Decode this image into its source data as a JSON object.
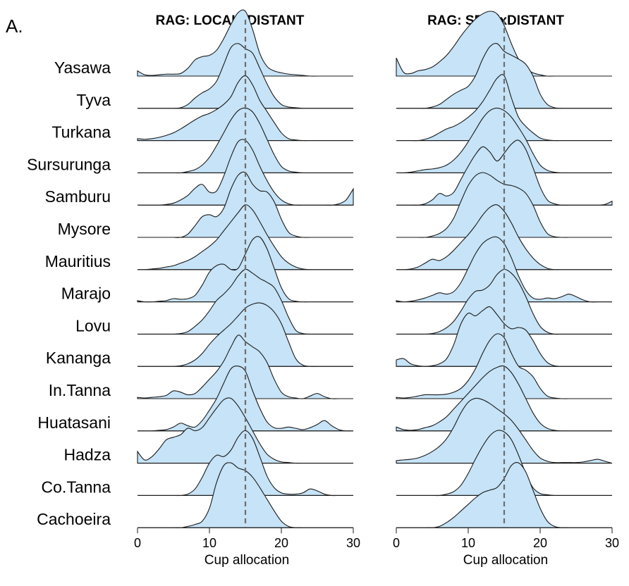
{
  "panel_label": "A.",
  "chart_data": [
    {
      "type": "area",
      "title": "RAG: LOCALxDISTANT",
      "xlabel": "Cup allocation",
      "xlim": [
        0,
        30
      ],
      "xticks": [
        0,
        10,
        20,
        30
      ],
      "reference_line": 15,
      "grid": false,
      "categories": [
        "Yasawa",
        "Tyva",
        "Turkana",
        "Sursurunga",
        "Samburu",
        "Mysore",
        "Mauritius",
        "Marajo",
        "Lovu",
        "Kananga",
        "In.Tanna",
        "Huatasani",
        "Hadza",
        "Co.Tanna",
        "Cachoeira"
      ],
      "x": [
        0,
        1,
        2,
        3,
        4,
        5,
        6,
        7,
        8,
        9,
        10,
        11,
        12,
        13,
        14,
        15,
        16,
        17,
        18,
        19,
        20,
        21,
        22,
        23,
        24,
        25,
        26,
        27,
        28,
        29,
        30
      ],
      "series": [
        {
          "values": [
            0.08,
            0.02,
            0.01,
            0.02,
            0.03,
            0.03,
            0.04,
            0.12,
            0.25,
            0.3,
            0.32,
            0.4,
            0.58,
            0.8,
            0.98,
            1.0,
            0.72,
            0.35,
            0.15,
            0.08,
            0.05,
            0.03,
            0.02,
            0.01,
            0,
            0,
            0,
            0,
            0,
            0,
            0
          ]
        },
        {
          "values": [
            0,
            0,
            0,
            0,
            0,
            0,
            0.01,
            0.06,
            0.16,
            0.24,
            0.3,
            0.42,
            0.68,
            0.94,
            1.0,
            0.92,
            0.85,
            0.62,
            0.38,
            0.18,
            0.06,
            0.02,
            0.01,
            0,
            0,
            0,
            0,
            0,
            0,
            0,
            0
          ]
        },
        {
          "values": [
            0.03,
            0.02,
            0.03,
            0.05,
            0.08,
            0.12,
            0.18,
            0.25,
            0.32,
            0.38,
            0.42,
            0.48,
            0.56,
            0.68,
            0.9,
            1.0,
            0.86,
            0.62,
            0.45,
            0.28,
            0.12,
            0.03,
            0.01,
            0,
            0,
            0,
            0,
            0,
            0,
            0,
            0
          ]
        },
        {
          "values": [
            0,
            0,
            0,
            0,
            0,
            0,
            0,
            0.02,
            0.05,
            0.12,
            0.24,
            0.42,
            0.62,
            0.82,
            0.96,
            1.0,
            0.94,
            0.76,
            0.52,
            0.28,
            0.1,
            0.03,
            0.01,
            0,
            0,
            0,
            0,
            0,
            0,
            0,
            0
          ]
        },
        {
          "values": [
            0,
            0,
            0,
            0,
            0.01,
            0.03,
            0.08,
            0.15,
            0.26,
            0.32,
            0.2,
            0.22,
            0.45,
            0.75,
            0.98,
            1.0,
            0.85,
            0.6,
            0.38,
            0.2,
            0.08,
            0.02,
            0,
            0,
            0,
            0,
            0,
            0,
            0.02,
            0.08,
            0.25
          ]
        },
        {
          "values": [
            0,
            0,
            0,
            0,
            0,
            0,
            0,
            0.05,
            0.18,
            0.32,
            0.35,
            0.32,
            0.45,
            0.75,
            0.96,
            1.0,
            0.82,
            0.72,
            0.7,
            0.55,
            0.28,
            0.08,
            0.02,
            0,
            0,
            0,
            0,
            0,
            0,
            0,
            0
          ]
        },
        {
          "values": [
            0,
            0,
            0.01,
            0.02,
            0.04,
            0.06,
            0.1,
            0.14,
            0.2,
            0.28,
            0.36,
            0.46,
            0.6,
            0.74,
            0.88,
            1.0,
            0.92,
            0.74,
            0.54,
            0.36,
            0.2,
            0.1,
            0.04,
            0.01,
            0,
            0,
            0,
            0,
            0,
            0,
            0
          ]
        },
        {
          "values": [
            0.02,
            0,
            0,
            0.01,
            0.02,
            0.05,
            0.04,
            0.05,
            0.1,
            0.26,
            0.46,
            0.56,
            0.58,
            0.5,
            0.52,
            0.74,
            0.96,
            1.0,
            0.82,
            0.52,
            0.22,
            0.05,
            0.01,
            0,
            0,
            0,
            0,
            0,
            0,
            0,
            0
          ]
        },
        {
          "values": [
            0,
            0,
            0,
            0,
            0,
            0,
            0.01,
            0.04,
            0.12,
            0.22,
            0.36,
            0.52,
            0.62,
            0.74,
            0.9,
            1.0,
            0.94,
            0.86,
            0.8,
            0.72,
            0.52,
            0.26,
            0.06,
            0.01,
            0,
            0,
            0,
            0,
            0,
            0,
            0
          ]
        },
        {
          "values": [
            0,
            0,
            0,
            0,
            0,
            0,
            0.01,
            0.04,
            0.1,
            0.2,
            0.34,
            0.46,
            0.56,
            0.66,
            0.78,
            0.9,
            0.96,
            0.98,
            0.94,
            0.84,
            0.66,
            0.38,
            0.12,
            0.02,
            0,
            0,
            0,
            0,
            0,
            0,
            0
          ]
        },
        {
          "values": [
            0.02,
            0.01,
            0.02,
            0.03,
            0.05,
            0.12,
            0.1,
            0.06,
            0.08,
            0.18,
            0.3,
            0.42,
            0.58,
            0.8,
            0.98,
            0.88,
            0.8,
            0.72,
            0.56,
            0.3,
            0.1,
            0.03,
            0.01,
            0,
            0.04,
            0.08,
            0.03,
            0,
            0,
            0,
            0
          ]
        },
        {
          "values": [
            0,
            0,
            0,
            0.01,
            0.02,
            0.06,
            0.12,
            0.08,
            0.06,
            0.16,
            0.32,
            0.5,
            0.74,
            0.96,
            1.0,
            0.92,
            0.62,
            0.35,
            0.14,
            0.05,
            0.04,
            0.06,
            0.04,
            0.02,
            0.05,
            0.1,
            0.16,
            0.08,
            0.02,
            0,
            0
          ]
        },
        {
          "values": [
            0.18,
            0.05,
            0.1,
            0.22,
            0.36,
            0.4,
            0.44,
            0.54,
            0.5,
            0.55,
            0.7,
            0.85,
            0.98,
            1.0,
            0.88,
            0.7,
            0.5,
            0.3,
            0.14,
            0.06,
            0.02,
            0.01,
            0,
            0,
            0,
            0,
            0,
            0,
            0,
            0,
            0
          ]
        },
        {
          "values": [
            0,
            0,
            0,
            0,
            0,
            0,
            0,
            0.02,
            0.1,
            0.28,
            0.5,
            0.62,
            0.6,
            0.7,
            0.9,
            1.0,
            0.88,
            0.6,
            0.3,
            0.12,
            0.04,
            0.02,
            0.02,
            0.04,
            0.1,
            0.07,
            0.02,
            0,
            0,
            0,
            0
          ]
        },
        {
          "values": [
            0,
            0,
            0,
            0,
            0,
            0,
            0,
            0.02,
            0.05,
            0.1,
            0.3,
            0.7,
            0.96,
            1.0,
            0.92,
            0.88,
            0.78,
            0.62,
            0.44,
            0.26,
            0.1,
            0.02,
            0,
            0,
            0,
            0,
            0,
            0,
            0,
            0,
            0
          ]
        }
      ]
    },
    {
      "type": "area",
      "title": "RAG: SELFxDISTANT",
      "xlabel": "Cup allocation",
      "xlim": [
        0,
        30
      ],
      "xticks": [
        0,
        10,
        20,
        30
      ],
      "reference_line": 15,
      "grid": false,
      "categories": [
        "Yasawa",
        "Tyva",
        "Turkana",
        "Sursurunga",
        "Samburu",
        "Mysore",
        "Mauritius",
        "Marajo",
        "Lovu",
        "Kananga",
        "In.Tanna",
        "Huatasani",
        "Hadza",
        "Co.Tanna",
        "Cachoeira"
      ],
      "x": [
        0,
        1,
        2,
        3,
        4,
        5,
        6,
        7,
        8,
        9,
        10,
        11,
        12,
        13,
        14,
        15,
        16,
        17,
        18,
        19,
        20,
        21,
        22,
        23,
        24,
        25,
        26,
        27,
        28,
        29,
        30
      ],
      "series": [
        {
          "values": [
            0.28,
            0.06,
            0.04,
            0.08,
            0.1,
            0.14,
            0.22,
            0.32,
            0.46,
            0.62,
            0.76,
            0.88,
            0.96,
            1.0,
            0.96,
            0.78,
            0.5,
            0.26,
            0.12,
            0.05,
            0.02,
            0,
            0,
            0,
            0,
            0,
            0,
            0,
            0,
            0,
            0
          ]
        },
        {
          "values": [
            0,
            0,
            0,
            0,
            0,
            0.02,
            0.06,
            0.14,
            0.22,
            0.28,
            0.34,
            0.5,
            0.76,
            0.95,
            1.0,
            0.88,
            0.82,
            0.76,
            0.68,
            0.5,
            0.22,
            0.06,
            0.01,
            0,
            0,
            0,
            0,
            0,
            0,
            0,
            0
          ]
        },
        {
          "values": [
            0,
            0,
            0,
            0,
            0.02,
            0.06,
            0.12,
            0.18,
            0.22,
            0.28,
            0.36,
            0.46,
            0.6,
            0.78,
            0.96,
            1.0,
            0.66,
            0.36,
            0.22,
            0.12,
            0.04,
            0.01,
            0,
            0,
            0,
            0,
            0,
            0,
            0,
            0,
            0
          ]
        },
        {
          "values": [
            0,
            0,
            0.01,
            0.03,
            0.05,
            0.06,
            0.08,
            0.12,
            0.2,
            0.32,
            0.48,
            0.66,
            0.84,
            0.96,
            1.0,
            0.96,
            0.86,
            0.7,
            0.52,
            0.3,
            0.12,
            0.04,
            0.01,
            0,
            0,
            0,
            0,
            0,
            0,
            0,
            0
          ]
        },
        {
          "values": [
            0,
            0,
            0,
            0,
            0.02,
            0.08,
            0.18,
            0.14,
            0.2,
            0.4,
            0.6,
            0.78,
            0.9,
            0.82,
            0.68,
            0.8,
            0.94,
            1.0,
            0.86,
            0.58,
            0.28,
            0.08,
            0.02,
            0,
            0,
            0,
            0,
            0,
            0,
            0.01,
            0.06
          ]
        },
        {
          "values": [
            0,
            0,
            0,
            0,
            0,
            0.02,
            0.06,
            0.14,
            0.3,
            0.56,
            0.8,
            0.95,
            1.0,
            0.96,
            0.88,
            0.82,
            0.8,
            0.76,
            0.68,
            0.5,
            0.24,
            0.06,
            0.01,
            0,
            0,
            0,
            0,
            0,
            0,
            0,
            0
          ]
        },
        {
          "values": [
            0,
            0,
            0.01,
            0.04,
            0.1,
            0.16,
            0.14,
            0.2,
            0.3,
            0.42,
            0.54,
            0.68,
            0.84,
            0.96,
            1.0,
            0.9,
            0.72,
            0.5,
            0.32,
            0.18,
            0.08,
            0.02,
            0,
            0,
            0,
            0,
            0,
            0,
            0,
            0,
            0
          ]
        },
        {
          "values": [
            0.02,
            0,
            0.01,
            0.03,
            0.06,
            0.1,
            0.14,
            0.12,
            0.16,
            0.3,
            0.52,
            0.74,
            0.9,
            0.98,
            1.0,
            0.9,
            0.68,
            0.4,
            0.18,
            0.06,
            0.04,
            0.06,
            0.05,
            0.08,
            0.12,
            0.08,
            0.03,
            0,
            0,
            0,
            0
          ]
        },
        {
          "values": [
            0,
            0,
            0,
            0,
            0,
            0.01,
            0.04,
            0.1,
            0.2,
            0.36,
            0.54,
            0.66,
            0.68,
            0.76,
            0.92,
            1.0,
            0.94,
            0.8,
            0.58,
            0.32,
            0.12,
            0.03,
            0,
            0,
            0,
            0,
            0,
            0,
            0,
            0,
            0
          ]
        },
        {
          "values": [
            0.1,
            0.12,
            0.04,
            0.01,
            0,
            0.01,
            0.04,
            0.12,
            0.34,
            0.66,
            0.82,
            0.78,
            0.86,
            0.92,
            0.8,
            0.66,
            0.58,
            0.6,
            0.56,
            0.4,
            0.2,
            0.06,
            0.01,
            0,
            0,
            0,
            0,
            0,
            0,
            0,
            0
          ]
        },
        {
          "values": [
            0.02,
            0.01,
            0.02,
            0.04,
            0.06,
            0.06,
            0.06,
            0.07,
            0.1,
            0.16,
            0.28,
            0.46,
            0.7,
            0.9,
            1.0,
            0.94,
            0.7,
            0.5,
            0.44,
            0.34,
            0.16,
            0.04,
            0.01,
            0,
            0,
            0,
            0,
            0,
            0,
            0,
            0
          ]
        },
        {
          "values": [
            0.06,
            0.02,
            0.01,
            0.02,
            0.05,
            0.08,
            0.14,
            0.22,
            0.34,
            0.46,
            0.58,
            0.7,
            0.82,
            0.92,
            0.98,
            1.0,
            0.9,
            0.72,
            0.5,
            0.28,
            0.12,
            0.04,
            0.01,
            0,
            0,
            0,
            0,
            0,
            0,
            0,
            0
          ]
        },
        {
          "values": [
            0.04,
            0.05,
            0.06,
            0.08,
            0.12,
            0.18,
            0.26,
            0.38,
            0.56,
            0.78,
            0.94,
            1.0,
            0.98,
            0.92,
            0.84,
            0.76,
            0.66,
            0.52,
            0.36,
            0.2,
            0.08,
            0.03,
            0.01,
            0.01,
            0.01,
            0.01,
            0.02,
            0.04,
            0.06,
            0.03,
            0
          ]
        },
        {
          "values": [
            0,
            0,
            0,
            0,
            0,
            0,
            0,
            0.02,
            0.06,
            0.16,
            0.34,
            0.56,
            0.76,
            0.92,
            1.0,
            0.98,
            0.86,
            0.62,
            0.34,
            0.12,
            0.03,
            0.01,
            0,
            0,
            0,
            0,
            0,
            0,
            0,
            0,
            0
          ]
        },
        {
          "values": [
            0,
            0,
            0,
            0,
            0,
            0,
            0.02,
            0.08,
            0.16,
            0.26,
            0.36,
            0.46,
            0.54,
            0.58,
            0.62,
            0.76,
            0.96,
            1.0,
            0.86,
            0.58,
            0.3,
            0.1,
            0.02,
            0,
            0,
            0,
            0,
            0,
            0,
            0,
            0
          ]
        }
      ]
    }
  ]
}
